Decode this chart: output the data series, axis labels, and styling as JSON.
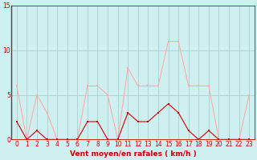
{
  "x": [
    0,
    1,
    2,
    3,
    4,
    5,
    6,
    7,
    8,
    9,
    10,
    11,
    12,
    13,
    14,
    15,
    16,
    17,
    18,
    19,
    20,
    21,
    22,
    23
  ],
  "vent_moyen": [
    2,
    0,
    1,
    0,
    0,
    0,
    0,
    2,
    2,
    0,
    0,
    3,
    2,
    2,
    3,
    4,
    3,
    1,
    0,
    1,
    0,
    0,
    0,
    0
  ],
  "rafales": [
    6,
    0,
    5,
    3,
    0,
    0,
    0,
    6,
    6,
    5,
    0,
    8,
    6,
    6,
    6,
    11,
    11,
    6,
    6,
    6,
    0,
    0,
    0,
    5
  ],
  "color_moyen": "#cc0000",
  "color_rafales": "#ffaaaa",
  "bg_color": "#cff0f0",
  "grid_color": "#aacece",
  "xlabel": "Vent moyen/en rafales ( km/h )",
  "xlim": [
    -0.5,
    23.5
  ],
  "ylim": [
    0,
    15
  ],
  "yticks": [
    0,
    5,
    10,
    15
  ],
  "xticks": [
    0,
    1,
    2,
    3,
    4,
    5,
    6,
    7,
    8,
    9,
    10,
    11,
    12,
    13,
    14,
    15,
    16,
    17,
    18,
    19,
    20,
    21,
    22,
    23
  ],
  "tick_fontsize": 5.5,
  "xlabel_fontsize": 6.5
}
